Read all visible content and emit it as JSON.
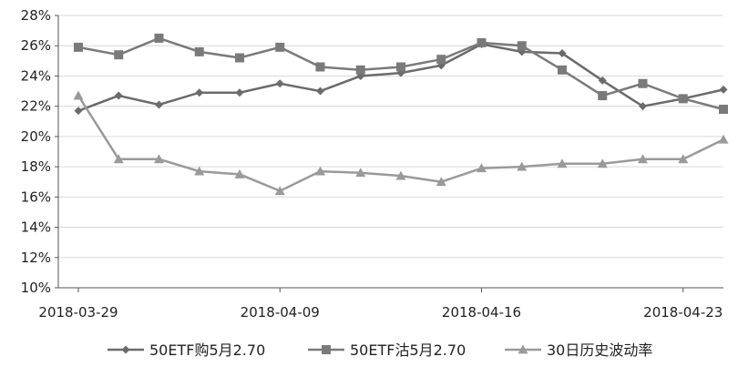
{
  "chart_data": {
    "type": "line",
    "title": "",
    "xlabel": "",
    "ylabel": "",
    "ylim": [
      0.1,
      0.28
    ],
    "yticks": [
      0.1,
      0.12,
      0.14,
      0.16,
      0.18,
      0.2,
      0.22,
      0.24,
      0.26,
      0.28
    ],
    "yticklabels": [
      "10%",
      "12%",
      "14%",
      "16%",
      "18%",
      "20%",
      "22%",
      "24%",
      "26%",
      "28%"
    ],
    "x": [
      "2018-03-29",
      "2018-03-30",
      "2018-04-02",
      "2018-04-03",
      "2018-04-04",
      "2018-04-09",
      "2018-04-10",
      "2018-04-11",
      "2018-04-12",
      "2018-04-13",
      "2018-04-16",
      "2018-04-17",
      "2018-04-18",
      "2018-04-19",
      "2018-04-20",
      "2018-04-23",
      "2018-04-24"
    ],
    "xticklabels": [
      "2018-03-29",
      "2018-04-09",
      "2018-04-16",
      "2018-04-23"
    ],
    "grid": "horizontal",
    "legend_position": "bottom",
    "series": [
      {
        "name": "50ETF购5月2.70",
        "marker": "diamond",
        "color": "#6b6b6b",
        "values": [
          0.217,
          0.227,
          0.221,
          0.229,
          0.229,
          0.235,
          0.23,
          0.24,
          0.242,
          0.247,
          0.261,
          0.256,
          0.255,
          0.237,
          0.22,
          0.225,
          0.231
        ]
      },
      {
        "name": "50ETF沽5月2.70",
        "marker": "square",
        "color": "#7a7a7a",
        "values": [
          0.259,
          0.254,
          0.265,
          0.256,
          0.252,
          0.259,
          0.246,
          0.244,
          0.246,
          0.251,
          0.262,
          0.26,
          0.244,
          0.227,
          0.235,
          0.225,
          0.218
        ]
      },
      {
        "name": "30日历史波动率",
        "marker": "triangle",
        "color": "#9a9a9a",
        "values": [
          0.227,
          0.185,
          0.185,
          0.177,
          0.175,
          0.164,
          0.177,
          0.176,
          0.174,
          0.17,
          0.179,
          0.18,
          0.182,
          0.182,
          0.185,
          0.185,
          0.198
        ]
      }
    ]
  }
}
